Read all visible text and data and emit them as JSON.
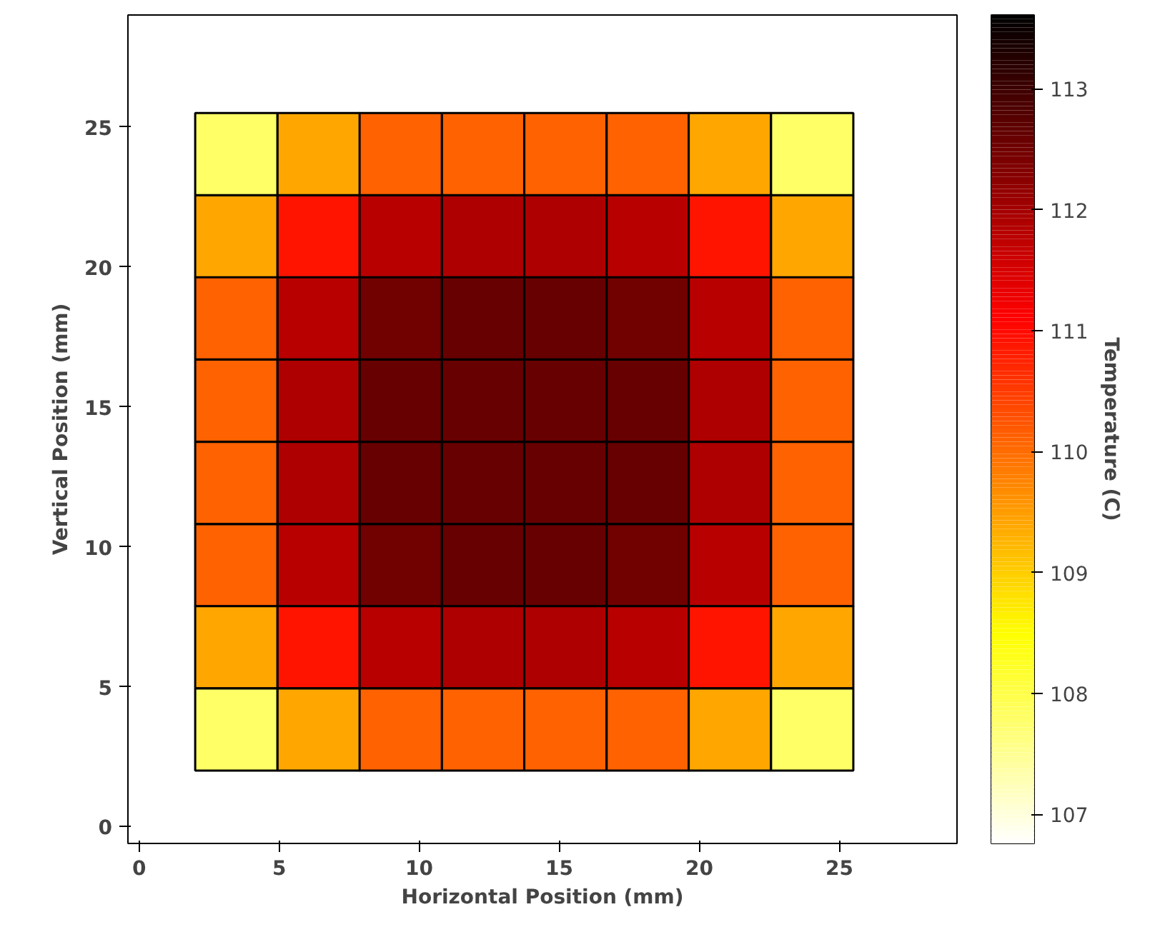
{
  "chart_data": {
    "type": "heatmap",
    "xlabel": "Horizontal Position (mm)",
    "ylabel": "Vertical Position (mm)",
    "clabel": "Temperature (C)",
    "x": [
      3.47,
      6.41,
      9.34,
      12.28,
      15.22,
      18.16,
      21.09,
      24.03
    ],
    "y": [
      24.03,
      21.09,
      18.16,
      15.22,
      12.28,
      9.34,
      6.41,
      3.47
    ],
    "cells": [
      [
        107.8,
        109.4,
        110.1,
        110.1,
        110.1,
        110.1,
        109.4,
        107.8
      ],
      [
        109.4,
        110.9,
        111.8,
        111.9,
        111.9,
        111.8,
        110.9,
        109.4
      ],
      [
        110.1,
        111.8,
        112.5,
        112.6,
        112.6,
        112.5,
        111.8,
        110.1
      ],
      [
        110.1,
        111.9,
        112.6,
        112.6,
        112.6,
        112.6,
        111.9,
        110.1
      ],
      [
        110.1,
        111.9,
        112.6,
        112.6,
        112.6,
        112.6,
        111.9,
        110.1
      ],
      [
        110.1,
        111.8,
        112.5,
        112.6,
        112.6,
        112.5,
        111.8,
        110.1
      ],
      [
        109.4,
        110.9,
        111.8,
        111.9,
        111.9,
        111.8,
        110.9,
        109.4
      ],
      [
        107.8,
        109.4,
        110.1,
        110.1,
        110.1,
        110.1,
        109.4,
        107.8
      ]
    ],
    "xlim": [
      -0.4,
      29.2
    ],
    "ylim": [
      -0.6,
      29.0
    ],
    "xticks": [
      0,
      5,
      10,
      15,
      20,
      25
    ],
    "yticks": [
      0,
      5,
      10,
      15,
      20,
      25
    ],
    "clim": [
      106.76,
      113.61
    ],
    "cticks": [
      107,
      108,
      109,
      110,
      111,
      112,
      113
    ]
  }
}
